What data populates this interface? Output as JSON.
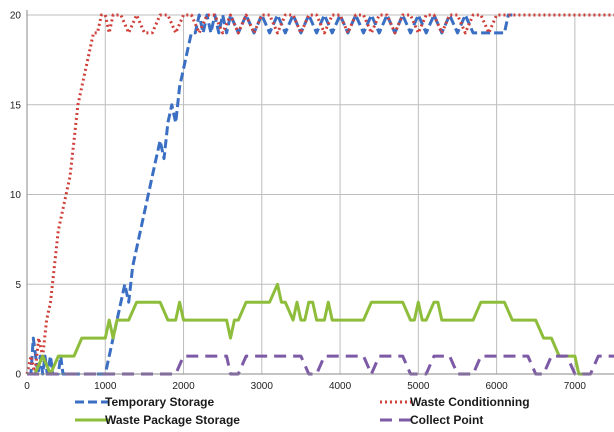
{
  "chart_data": {
    "type": "line",
    "title": "",
    "xlabel": "",
    "ylabel": "",
    "xlim": [
      0,
      7500
    ],
    "ylim": [
      0,
      20
    ],
    "x_ticks": [
      0,
      1000,
      2000,
      3000,
      4000,
      5000,
      6000,
      7000
    ],
    "y_ticks": [
      0,
      5,
      10,
      15,
      20
    ],
    "grid": true,
    "legend_position": "bottom",
    "series": [
      {
        "name": "Temporary Storage",
        "color": "#3b6fc4",
        "style": "dashed",
        "points": [
          [
            0,
            0
          ],
          [
            50,
            0
          ],
          [
            80,
            2
          ],
          [
            110,
            1
          ],
          [
            140,
            0
          ],
          [
            170,
            1
          ],
          [
            200,
            0
          ],
          [
            230,
            1
          ],
          [
            260,
            0
          ],
          [
            300,
            1
          ],
          [
            330,
            0
          ],
          [
            370,
            0
          ],
          [
            400,
            0
          ],
          [
            430,
            1
          ],
          [
            460,
            0
          ],
          [
            600,
            0
          ],
          [
            650,
            0
          ],
          [
            700,
            0
          ],
          [
            800,
            0
          ],
          [
            900,
            0
          ],
          [
            1000,
            0
          ],
          [
            1050,
            1
          ],
          [
            1100,
            2
          ],
          [
            1150,
            3
          ],
          [
            1200,
            4
          ],
          [
            1250,
            5
          ],
          [
            1300,
            4
          ],
          [
            1350,
            6
          ],
          [
            1400,
            7
          ],
          [
            1450,
            8
          ],
          [
            1500,
            9
          ],
          [
            1550,
            10
          ],
          [
            1600,
            11
          ],
          [
            1650,
            12
          ],
          [
            1700,
            13
          ],
          [
            1750,
            12
          ],
          [
            1800,
            14
          ],
          [
            1850,
            15
          ],
          [
            1900,
            14
          ],
          [
            1950,
            16
          ],
          [
            2000,
            17
          ],
          [
            2050,
            18
          ],
          [
            2100,
            19
          ],
          [
            2150,
            19
          ],
          [
            2200,
            20
          ],
          [
            2250,
            19
          ],
          [
            2300,
            20
          ],
          [
            2350,
            19
          ],
          [
            2400,
            20
          ],
          [
            2450,
            19
          ],
          [
            2500,
            20
          ],
          [
            2550,
            19
          ],
          [
            2600,
            20
          ],
          [
            2700,
            19
          ],
          [
            2800,
            20
          ],
          [
            2900,
            19
          ],
          [
            3000,
            20
          ],
          [
            3100,
            19
          ],
          [
            3200,
            20
          ],
          [
            3300,
            19
          ],
          [
            3400,
            20
          ],
          [
            3500,
            19
          ],
          [
            3600,
            20
          ],
          [
            3700,
            19
          ],
          [
            3800,
            20
          ],
          [
            3900,
            19
          ],
          [
            4000,
            20
          ],
          [
            4100,
            19
          ],
          [
            4200,
            20
          ],
          [
            4300,
            19
          ],
          [
            4400,
            20
          ],
          [
            4500,
            19
          ],
          [
            4600,
            20
          ],
          [
            4700,
            19
          ],
          [
            4800,
            20
          ],
          [
            4900,
            19
          ],
          [
            5000,
            20
          ],
          [
            5100,
            19
          ],
          [
            5200,
            20
          ],
          [
            5300,
            19
          ],
          [
            5400,
            20
          ],
          [
            5500,
            19
          ],
          [
            5600,
            20
          ],
          [
            5700,
            19
          ],
          [
            5800,
            19
          ],
          [
            5900,
            19
          ],
          [
            6000,
            19
          ],
          [
            6100,
            19
          ],
          [
            6150,
            20
          ],
          [
            6200,
            20
          ]
        ]
      },
      {
        "name": "Waste Conditionning",
        "color": "#d0403a",
        "style": "dotted",
        "points": [
          [
            0,
            0
          ],
          [
            50,
            1
          ],
          [
            100,
            0
          ],
          [
            150,
            2
          ],
          [
            200,
            1
          ],
          [
            250,
            3
          ],
          [
            300,
            4
          ],
          [
            350,
            6
          ],
          [
            400,
            8
          ],
          [
            450,
            9
          ],
          [
            500,
            10
          ],
          [
            550,
            11
          ],
          [
            600,
            13
          ],
          [
            650,
            15
          ],
          [
            700,
            16
          ],
          [
            750,
            17
          ],
          [
            800,
            18
          ],
          [
            850,
            19
          ],
          [
            900,
            19
          ],
          [
            950,
            20
          ],
          [
            1000,
            20
          ],
          [
            1050,
            19
          ],
          [
            1100,
            20
          ],
          [
            1200,
            20
          ],
          [
            1300,
            19
          ],
          [
            1400,
            20
          ],
          [
            1500,
            19
          ],
          [
            1600,
            19
          ],
          [
            1700,
            20
          ],
          [
            1800,
            20
          ],
          [
            1900,
            19
          ],
          [
            2000,
            20
          ],
          [
            2100,
            20
          ],
          [
            2200,
            19
          ],
          [
            2300,
            20
          ],
          [
            2400,
            20
          ],
          [
            2500,
            19
          ],
          [
            2600,
            20
          ],
          [
            2700,
            19
          ],
          [
            2800,
            20
          ],
          [
            2900,
            19
          ],
          [
            3000,
            20
          ],
          [
            3100,
            20
          ],
          [
            3200,
            19
          ],
          [
            3300,
            20
          ],
          [
            3400,
            20
          ],
          [
            3500,
            19
          ],
          [
            3600,
            20
          ],
          [
            3700,
            20
          ],
          [
            3800,
            19
          ],
          [
            3900,
            20
          ],
          [
            4000,
            20
          ],
          [
            4100,
            19
          ],
          [
            4200,
            20
          ],
          [
            4300,
            20
          ],
          [
            4400,
            19
          ],
          [
            4500,
            20
          ],
          [
            4600,
            20
          ],
          [
            4700,
            19
          ],
          [
            4800,
            20
          ],
          [
            4900,
            20
          ],
          [
            5000,
            19
          ],
          [
            5100,
            20
          ],
          [
            5200,
            20
          ],
          [
            5300,
            19
          ],
          [
            5400,
            20
          ],
          [
            5500,
            20
          ],
          [
            5600,
            19
          ],
          [
            5700,
            20
          ],
          [
            5800,
            20
          ],
          [
            5900,
            19
          ],
          [
            6000,
            20
          ],
          [
            6100,
            20
          ],
          [
            6200,
            20
          ],
          [
            6500,
            20
          ],
          [
            7000,
            20
          ],
          [
            7500,
            20
          ]
        ]
      },
      {
        "name": "Waste Package Storage",
        "color": "#8dbd3a",
        "style": "solid",
        "points": [
          [
            0,
            0
          ],
          [
            100,
            0
          ],
          [
            200,
            1
          ],
          [
            300,
            0
          ],
          [
            400,
            1
          ],
          [
            500,
            1
          ],
          [
            600,
            1
          ],
          [
            700,
            2
          ],
          [
            800,
            2
          ],
          [
            900,
            2
          ],
          [
            1000,
            2
          ],
          [
            1050,
            3
          ],
          [
            1100,
            2
          ],
          [
            1150,
            3
          ],
          [
            1200,
            3
          ],
          [
            1300,
            3
          ],
          [
            1400,
            4
          ],
          [
            1500,
            4
          ],
          [
            1600,
            4
          ],
          [
            1700,
            4
          ],
          [
            1800,
            3
          ],
          [
            1900,
            3
          ],
          [
            1950,
            4
          ],
          [
            2000,
            3
          ],
          [
            2100,
            3
          ],
          [
            2200,
            3
          ],
          [
            2300,
            3
          ],
          [
            2400,
            3
          ],
          [
            2500,
            3
          ],
          [
            2550,
            3
          ],
          [
            2600,
            2
          ],
          [
            2650,
            3
          ],
          [
            2700,
            3
          ],
          [
            2800,
            4
          ],
          [
            2900,
            4
          ],
          [
            3000,
            4
          ],
          [
            3100,
            4
          ],
          [
            3200,
            5
          ],
          [
            3250,
            4
          ],
          [
            3300,
            4
          ],
          [
            3400,
            3
          ],
          [
            3450,
            4
          ],
          [
            3500,
            3
          ],
          [
            3550,
            3
          ],
          [
            3600,
            4
          ],
          [
            3650,
            4
          ],
          [
            3700,
            3
          ],
          [
            3800,
            3
          ],
          [
            3850,
            4
          ],
          [
            3900,
            3
          ],
          [
            4000,
            3
          ],
          [
            4100,
            3
          ],
          [
            4200,
            3
          ],
          [
            4300,
            3
          ],
          [
            4400,
            4
          ],
          [
            4500,
            4
          ],
          [
            4600,
            4
          ],
          [
            4700,
            4
          ],
          [
            4800,
            4
          ],
          [
            4900,
            3
          ],
          [
            4950,
            3
          ],
          [
            5000,
            4
          ],
          [
            5050,
            3
          ],
          [
            5100,
            3
          ],
          [
            5200,
            4
          ],
          [
            5250,
            4
          ],
          [
            5300,
            3
          ],
          [
            5400,
            3
          ],
          [
            5500,
            3
          ],
          [
            5600,
            3
          ],
          [
            5700,
            3
          ],
          [
            5800,
            4
          ],
          [
            5900,
            4
          ],
          [
            6000,
            4
          ],
          [
            6100,
            4
          ],
          [
            6200,
            3
          ],
          [
            6300,
            3
          ],
          [
            6400,
            3
          ],
          [
            6500,
            3
          ],
          [
            6600,
            2
          ],
          [
            6700,
            2
          ],
          [
            6800,
            1
          ],
          [
            6900,
            1
          ],
          [
            7000,
            1
          ],
          [
            7050,
            0
          ],
          [
            7100,
            0
          ]
        ]
      },
      {
        "name": "Collect Point",
        "color": "#7d5aa6",
        "style": "longdash",
        "points": [
          [
            0,
            0
          ],
          [
            500,
            0
          ],
          [
            1000,
            0
          ],
          [
            1500,
            0
          ],
          [
            1900,
            0
          ],
          [
            2000,
            1
          ],
          [
            2200,
            1
          ],
          [
            2400,
            1
          ],
          [
            2550,
            1
          ],
          [
            2600,
            0
          ],
          [
            2700,
            0
          ],
          [
            2800,
            1
          ],
          [
            3000,
            1
          ],
          [
            3200,
            1
          ],
          [
            3400,
            1
          ],
          [
            3500,
            1
          ],
          [
            3600,
            0
          ],
          [
            3700,
            0
          ],
          [
            3800,
            1
          ],
          [
            4000,
            1
          ],
          [
            4200,
            1
          ],
          [
            4300,
            1
          ],
          [
            4400,
            0
          ],
          [
            4500,
            1
          ],
          [
            4700,
            1
          ],
          [
            4800,
            1
          ],
          [
            4900,
            0
          ],
          [
            5100,
            0
          ],
          [
            5200,
            1
          ],
          [
            5300,
            1
          ],
          [
            5400,
            1
          ],
          [
            5500,
            0
          ],
          [
            5700,
            0
          ],
          [
            5800,
            1
          ],
          [
            6000,
            1
          ],
          [
            6200,
            1
          ],
          [
            6400,
            1
          ],
          [
            6500,
            0
          ],
          [
            6600,
            0
          ],
          [
            6700,
            1
          ],
          [
            6800,
            1
          ],
          [
            6900,
            1
          ],
          [
            7000,
            0
          ],
          [
            7200,
            0
          ],
          [
            7300,
            1
          ],
          [
            7400,
            1
          ],
          [
            7500,
            1
          ]
        ]
      }
    ]
  }
}
